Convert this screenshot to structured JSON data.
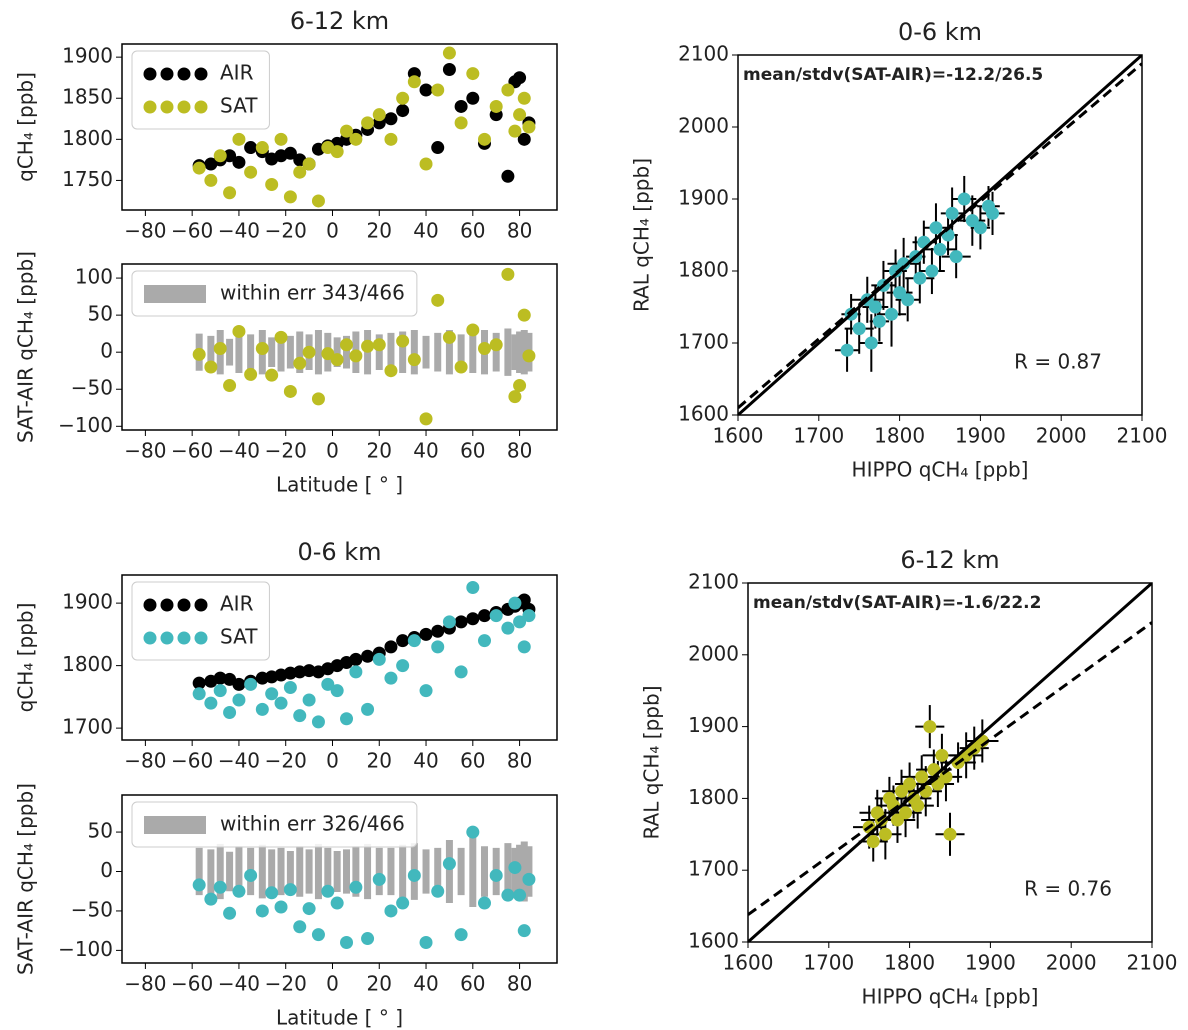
{
  "chart_data": [
    {
      "type": "scatter",
      "title": "6-12 km",
      "ylabel": "qCH₄ [ppb]",
      "legend": "upper left",
      "xlim": [
        -90,
        96
      ],
      "ylim": [
        1714,
        1916
      ],
      "xticks": [
        {
          "value": -80,
          "label": "−80"
        },
        {
          "value": -60,
          "label": "−60"
        },
        {
          "value": -40,
          "label": "−40"
        },
        {
          "value": -20,
          "label": "−20"
        },
        0,
        20,
        40,
        60,
        80
      ],
      "yticks": [
        1750,
        1800,
        1850,
        1900
      ],
      "series": [
        {
          "name": "AIR",
          "color": "#000000",
          "x": [
            -57,
            -52,
            -48,
            -44,
            -40,
            -35,
            -30,
            -26,
            -22,
            -18,
            -14,
            -10,
            -6,
            -2,
            2,
            6,
            10,
            15,
            20,
            25,
            30,
            35,
            40,
            45,
            50,
            55,
            60,
            65,
            70,
            75,
            78,
            80,
            82,
            84
          ],
          "values": [
            1768,
            1770,
            1775,
            1780,
            1772,
            1790,
            1785,
            1776,
            1780,
            1783,
            1775,
            1770,
            1788,
            1792,
            1795,
            1800,
            1805,
            1812,
            1820,
            1825,
            1835,
            1880,
            1860,
            1790,
            1885,
            1840,
            1850,
            1795,
            1830,
            1755,
            1870,
            1875,
            1800,
            1820
          ]
        },
        {
          "name": "SAT",
          "color": "#bcbd22",
          "x": [
            -57,
            -52,
            -48,
            -44,
            -40,
            -35,
            -30,
            -26,
            -22,
            -18,
            -14,
            -10,
            -6,
            -2,
            2,
            6,
            10,
            15,
            20,
            25,
            30,
            35,
            40,
            45,
            50,
            55,
            60,
            65,
            70,
            75,
            78,
            80,
            82,
            84
          ],
          "values": [
            1765,
            1750,
            1780,
            1735,
            1800,
            1760,
            1790,
            1745,
            1800,
            1730,
            1760,
            1770,
            1725,
            1790,
            1785,
            1810,
            1800,
            1820,
            1830,
            1800,
            1850,
            1870,
            1770,
            1860,
            1905,
            1820,
            1880,
            1800,
            1840,
            1860,
            1810,
            1830,
            1850,
            1815
          ]
        }
      ]
    },
    {
      "type": "scatter",
      "ylabel": "SAT-AIR qCH₄ [ppb]",
      "xlabel": "Latitude [ ° ]",
      "legend": "upper left",
      "xlim": [
        -90,
        96
      ],
      "ylim": [
        -105,
        119
      ],
      "xticks": [
        {
          "value": -80,
          "label": "−80"
        },
        {
          "value": -60,
          "label": "−60"
        },
        {
          "value": -40,
          "label": "−40"
        },
        {
          "value": -20,
          "label": "−20"
        },
        0,
        20,
        40,
        60,
        80
      ],
      "yticks": [
        {
          "value": -100,
          "label": "−100"
        },
        {
          "value": -50,
          "label": "−50"
        },
        0,
        50,
        100
      ],
      "series": [
        {
          "name": "within err 343/466",
          "type": "errorband",
          "color": "#aaaaaa",
          "x": [
            -57,
            -52,
            -48,
            -44,
            -40,
            -35,
            -30,
            -26,
            -22,
            -18,
            -14,
            -10,
            -6,
            -2,
            2,
            6,
            10,
            15,
            20,
            25,
            30,
            35,
            40,
            45,
            50,
            55,
            60,
            65,
            70,
            75,
            78,
            80,
            82,
            84
          ],
          "values": [
            25,
            22,
            30,
            18,
            28,
            24,
            30,
            20,
            26,
            22,
            28,
            24,
            30,
            26,
            20,
            22,
            28,
            30,
            24,
            26,
            28,
            30,
            22,
            26,
            30,
            24,
            28,
            30,
            26,
            32,
            24,
            28,
            30,
            26
          ]
        },
        {
          "color": "#bcbd22",
          "x": [
            -57,
            -52,
            -48,
            -44,
            -40,
            -35,
            -30,
            -26,
            -22,
            -18,
            -14,
            -10,
            -6,
            -2,
            2,
            6,
            10,
            15,
            20,
            25,
            30,
            35,
            40,
            45,
            50,
            55,
            60,
            65,
            70,
            75,
            78,
            80,
            82,
            84
          ],
          "values": [
            -3,
            -20,
            5,
            -45,
            28,
            -30,
            5,
            -31,
            20,
            -53,
            -15,
            0,
            -63,
            -2,
            -10,
            10,
            -5,
            8,
            10,
            -25,
            15,
            -10,
            -90,
            70,
            20,
            -20,
            30,
            5,
            10,
            105,
            -60,
            -45,
            50,
            -5
          ]
        }
      ]
    },
    {
      "type": "errorbar",
      "title": "0-6 km",
      "xlabel": "HIPPO qCH₄ [ppb]",
      "ylabel": "RAL qCH₄ [ppb]",
      "annotations": [
        "mean/stdv(SAT-AIR)=-12.2/26.5",
        "R = 0.87"
      ],
      "xlim": [
        1600,
        2100
      ],
      "ylim": [
        1600,
        2100
      ],
      "xticks": [
        1600,
        1700,
        1800,
        1900,
        2000,
        2100
      ],
      "yticks": [
        1600,
        1700,
        1800,
        1900,
        2000,
        2100
      ],
      "lines": [
        {
          "style": "solid",
          "color": "#000000",
          "x": [
            1600,
            2100
          ],
          "values": [
            1600,
            2100
          ]
        },
        {
          "style": "dashed",
          "color": "#000000",
          "x": [
            1600,
            2100
          ],
          "values": [
            1610,
            2088
          ]
        }
      ],
      "series": [
        {
          "color": "#42b8bd",
          "x": [
            1735,
            1740,
            1750,
            1760,
            1765,
            1770,
            1775,
            1780,
            1790,
            1795,
            1800,
            1805,
            1810,
            1820,
            1825,
            1830,
            1840,
            1845,
            1850,
            1860,
            1865,
            1870,
            1880,
            1890,
            1900,
            1910,
            1915
          ],
          "values": [
            1690,
            1740,
            1720,
            1760,
            1700,
            1750,
            1730,
            1780,
            1740,
            1800,
            1770,
            1810,
            1760,
            1820,
            1790,
            1840,
            1800,
            1860,
            1830,
            1850,
            1880,
            1820,
            1900,
            1870,
            1860,
            1890,
            1880
          ],
          "xerr": [
            15,
            12,
            18,
            20,
            14,
            16,
            12,
            15,
            18,
            14,
            16,
            20,
            15,
            12,
            18,
            14,
            16,
            15,
            20,
            12,
            14,
            18,
            15,
            16,
            12,
            14,
            15
          ],
          "yerr": [
            30,
            28,
            35,
            32,
            40,
            30,
            28,
            34,
            45,
            30,
            32,
            36,
            30,
            28,
            35,
            30,
            32,
            34,
            30,
            28,
            36,
            30,
            32,
            35,
            30,
            28,
            30
          ]
        }
      ]
    },
    {
      "type": "scatter",
      "title": "0-6 km",
      "ylabel": "qCH₄ [ppb]",
      "legend": "upper left",
      "xlim": [
        -90,
        96
      ],
      "ylim": [
        1681,
        1945
      ],
      "xticks": [
        {
          "value": -80,
          "label": "−80"
        },
        {
          "value": -60,
          "label": "−60"
        },
        {
          "value": -40,
          "label": "−40"
        },
        {
          "value": -20,
          "label": "−20"
        },
        0,
        20,
        40,
        60,
        80
      ],
      "yticks": [
        1700,
        1800,
        1900
      ],
      "series": [
        {
          "name": "AIR",
          "color": "#000000",
          "x": [
            -57,
            -52,
            -48,
            -44,
            -40,
            -35,
            -30,
            -26,
            -22,
            -18,
            -14,
            -10,
            -6,
            -2,
            2,
            6,
            10,
            15,
            20,
            25,
            30,
            35,
            40,
            45,
            50,
            55,
            60,
            65,
            70,
            75,
            78,
            80,
            82,
            84
          ],
          "values": [
            1772,
            1775,
            1780,
            1778,
            1770,
            1775,
            1780,
            1782,
            1785,
            1788,
            1790,
            1792,
            1790,
            1795,
            1800,
            1805,
            1810,
            1815,
            1820,
            1830,
            1840,
            1845,
            1850,
            1855,
            1860,
            1870,
            1875,
            1880,
            1885,
            1890,
            1895,
            1900,
            1905,
            1890
          ]
        },
        {
          "name": "SAT",
          "color": "#42b8bd",
          "x": [
            -57,
            -52,
            -48,
            -44,
            -40,
            -35,
            -30,
            -26,
            -22,
            -18,
            -14,
            -10,
            -6,
            -2,
            2,
            6,
            10,
            15,
            20,
            25,
            30,
            35,
            40,
            45,
            50,
            55,
            60,
            65,
            70,
            75,
            78,
            80,
            82,
            84
          ],
          "values": [
            1755,
            1740,
            1760,
            1725,
            1745,
            1770,
            1730,
            1755,
            1740,
            1765,
            1720,
            1745,
            1710,
            1770,
            1760,
            1715,
            1790,
            1730,
            1810,
            1780,
            1800,
            1840,
            1760,
            1830,
            1870,
            1790,
            1925,
            1840,
            1880,
            1860,
            1900,
            1870,
            1830,
            1880
          ]
        }
      ]
    },
    {
      "type": "scatter",
      "ylabel": "SAT-AIR qCH₄ [ppb]",
      "xlabel": "Latitude [ ° ]",
      "legend": "upper left",
      "xlim": [
        -90,
        96
      ],
      "ylim": [
        -116,
        97
      ],
      "xticks": [
        {
          "value": -80,
          "label": "−80"
        },
        {
          "value": -60,
          "label": "−60"
        },
        {
          "value": -40,
          "label": "−40"
        },
        {
          "value": -20,
          "label": "−20"
        },
        0,
        20,
        40,
        60,
        80
      ],
      "yticks": [
        {
          "value": -100,
          "label": "−100"
        },
        {
          "value": -50,
          "label": "−50"
        },
        0,
        50
      ],
      "series": [
        {
          "name": "within err 326/466",
          "type": "errorband",
          "color": "#aaaaaa",
          "x": [
            -57,
            -52,
            -48,
            -44,
            -40,
            -35,
            -30,
            -26,
            -22,
            -18,
            -14,
            -10,
            -6,
            -2,
            2,
            6,
            10,
            15,
            20,
            25,
            30,
            35,
            40,
            45,
            50,
            55,
            60,
            65,
            70,
            75,
            78,
            80,
            82,
            84
          ],
          "values": [
            30,
            28,
            35,
            25,
            32,
            30,
            34,
            28,
            30,
            26,
            32,
            28,
            35,
            30,
            26,
            28,
            32,
            35,
            30,
            30,
            34,
            36,
            28,
            30,
            40,
            30,
            45,
            32,
            30,
            36,
            30,
            34,
            38,
            32
          ]
        },
        {
          "color": "#42b8bd",
          "x": [
            -57,
            -52,
            -48,
            -44,
            -40,
            -35,
            -30,
            -26,
            -22,
            -18,
            -14,
            -10,
            -6,
            -2,
            2,
            6,
            10,
            15,
            20,
            25,
            30,
            35,
            40,
            45,
            50,
            55,
            60,
            65,
            70,
            75,
            78,
            80,
            82,
            84
          ],
          "values": [
            -17,
            -35,
            -20,
            -53,
            -25,
            -5,
            -50,
            -27,
            -45,
            -23,
            -70,
            -47,
            -80,
            -25,
            -40,
            -90,
            -20,
            -85,
            -10,
            -50,
            -40,
            -5,
            -90,
            -25,
            10,
            -80,
            50,
            -40,
            -5,
            -30,
            5,
            -30,
            -75,
            -10
          ]
        }
      ]
    },
    {
      "type": "errorbar",
      "title": "6-12 km",
      "xlabel": "HIPPO qCH₄ [ppb]",
      "ylabel": "RAL qCH₄ [ppb]",
      "annotations": [
        "mean/stdv(SAT-AIR)=-1.6/22.2",
        "R = 0.76"
      ],
      "xlim": [
        1600,
        2100
      ],
      "ylim": [
        1600,
        2100
      ],
      "xticks": [
        1600,
        1700,
        1800,
        1900,
        2000,
        2100
      ],
      "yticks": [
        1600,
        1700,
        1800,
        1900,
        2000,
        2100
      ],
      "lines": [
        {
          "style": "solid",
          "color": "#000000",
          "x": [
            1600,
            2100
          ],
          "values": [
            1600,
            2100
          ]
        },
        {
          "style": "dashed",
          "color": "#000000",
          "x": [
            1600,
            2100
          ],
          "values": [
            1638,
            2045
          ]
        }
      ],
      "series": [
        {
          "color": "#bcbd22",
          "x": [
            1750,
            1755,
            1760,
            1765,
            1770,
            1775,
            1780,
            1785,
            1790,
            1795,
            1800,
            1805,
            1810,
            1815,
            1820,
            1825,
            1830,
            1835,
            1840,
            1845,
            1850,
            1860,
            1870,
            1880,
            1890
          ],
          "values": [
            1760,
            1740,
            1780,
            1770,
            1750,
            1800,
            1790,
            1770,
            1810,
            1780,
            1820,
            1800,
            1790,
            1830,
            1810,
            1900,
            1840,
            1820,
            1860,
            1830,
            1750,
            1850,
            1860,
            1870,
            1880
          ],
          "xerr": [
            20,
            18,
            22,
            25,
            20,
            18,
            20,
            22,
            24,
            20,
            18,
            22,
            20,
            25,
            20,
            18,
            22,
            20,
            24,
            20,
            18,
            22,
            20,
            18,
            20
          ],
          "yerr": [
            30,
            28,
            32,
            30,
            35,
            30,
            28,
            32,
            30,
            34,
            30,
            28,
            32,
            30,
            35,
            30,
            28,
            32,
            30,
            34,
            30,
            28,
            32,
            30,
            30
          ]
        }
      ]
    }
  ]
}
